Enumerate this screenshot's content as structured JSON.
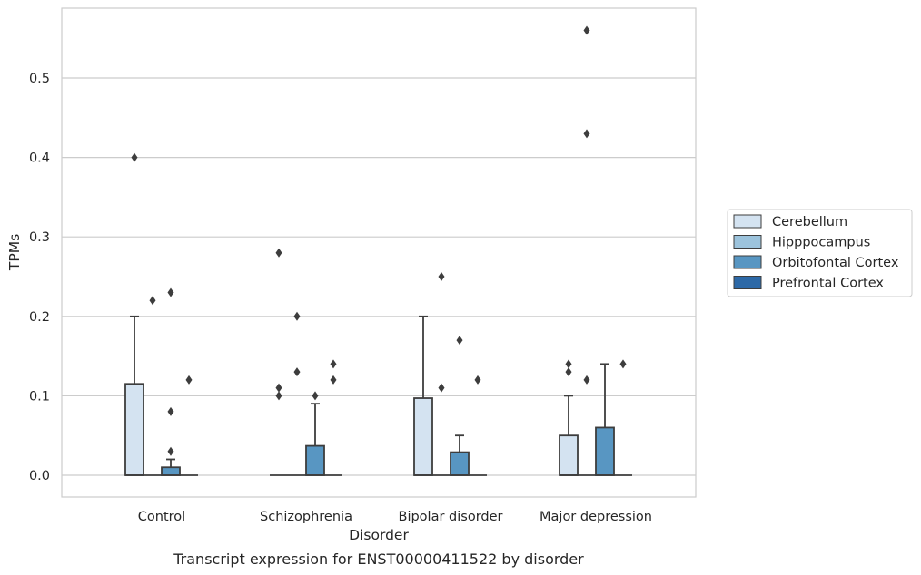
{
  "chart_data": {
    "type": "box",
    "caption": "Transcript expression for ENST00000411522 by disorder",
    "xlabel": "Disorder",
    "ylabel": "TPMs",
    "ylim": [
      -0.028,
      0.59
    ],
    "yticks": [
      "0.0",
      "0.1",
      "0.2",
      "0.3",
      "0.4",
      "0.5"
    ],
    "grid": true,
    "legend_position": "right",
    "categories": [
      "Control",
      "Schizophrenia",
      "Bipolar disorder",
      "Major depression"
    ],
    "series": [
      {
        "name": "Cerebellum",
        "color": "#d4e3f1",
        "boxes": [
          {
            "q1": 0.0,
            "median": 0.0,
            "q3": 0.115,
            "whisker_low": 0.0,
            "whisker_high": 0.2,
            "outliers": [
              0.4
            ]
          },
          {
            "q1": 0.0,
            "median": 0.0,
            "q3": 0.0,
            "whisker_low": 0.0,
            "whisker_high": 0.0,
            "outliers": [
              0.1,
              0.11,
              0.28
            ]
          },
          {
            "q1": 0.0,
            "median": 0.0,
            "q3": 0.097,
            "whisker_low": 0.0,
            "whisker_high": 0.2,
            "outliers": []
          },
          {
            "q1": 0.0,
            "median": 0.0,
            "q3": 0.05,
            "whisker_low": 0.0,
            "whisker_high": 0.1,
            "outliers": [
              0.13,
              0.14
            ]
          }
        ]
      },
      {
        "name": "Hipppocampus",
        "color": "#9cc3dc",
        "boxes": [
          {
            "q1": 0.0,
            "median": 0.0,
            "q3": 0.0,
            "whisker_low": 0.0,
            "whisker_high": 0.0,
            "outliers": [
              0.22
            ]
          },
          {
            "q1": 0.0,
            "median": 0.0,
            "q3": 0.0,
            "whisker_low": 0.0,
            "whisker_high": 0.0,
            "outliers": [
              0.13,
              0.2
            ]
          },
          {
            "q1": 0.0,
            "median": 0.0,
            "q3": 0.0,
            "whisker_low": 0.0,
            "whisker_high": 0.0,
            "outliers": [
              0.11,
              0.25
            ]
          },
          {
            "q1": 0.0,
            "median": 0.0,
            "q3": 0.0,
            "whisker_low": 0.0,
            "whisker_high": 0.0,
            "outliers": [
              0.12,
              0.43,
              0.56
            ]
          }
        ]
      },
      {
        "name": "Orbitofontal Cortex",
        "color": "#5896c2",
        "boxes": [
          {
            "q1": 0.0,
            "median": 0.0,
            "q3": 0.01,
            "whisker_low": 0.0,
            "whisker_high": 0.02,
            "outliers": [
              0.03,
              0.08,
              0.23
            ]
          },
          {
            "q1": 0.0,
            "median": 0.0,
            "q3": 0.037,
            "whisker_low": 0.0,
            "whisker_high": 0.09,
            "outliers": [
              0.1
            ]
          },
          {
            "q1": 0.0,
            "median": 0.0,
            "q3": 0.029,
            "whisker_low": 0.0,
            "whisker_high": 0.05,
            "outliers": [
              0.17
            ]
          },
          {
            "q1": 0.0,
            "median": 0.0,
            "q3": 0.06,
            "whisker_low": 0.0,
            "whisker_high": 0.14,
            "outliers": []
          }
        ]
      },
      {
        "name": "Prefrontal Cortex",
        "color": "#2d69a7",
        "boxes": [
          {
            "q1": 0.0,
            "median": 0.0,
            "q3": 0.0,
            "whisker_low": 0.0,
            "whisker_high": 0.0,
            "outliers": [
              0.12
            ]
          },
          {
            "q1": 0.0,
            "median": 0.0,
            "q3": 0.0,
            "whisker_low": 0.0,
            "whisker_high": 0.0,
            "outliers": [
              0.12,
              0.14
            ]
          },
          {
            "q1": 0.0,
            "median": 0.0,
            "q3": 0.0,
            "whisker_low": 0.0,
            "whisker_high": 0.0,
            "outliers": [
              0.12
            ]
          },
          {
            "q1": 0.0,
            "median": 0.0,
            "q3": 0.0,
            "whisker_low": 0.0,
            "whisker_high": 0.0,
            "outliers": [
              0.14
            ]
          }
        ]
      }
    ]
  }
}
